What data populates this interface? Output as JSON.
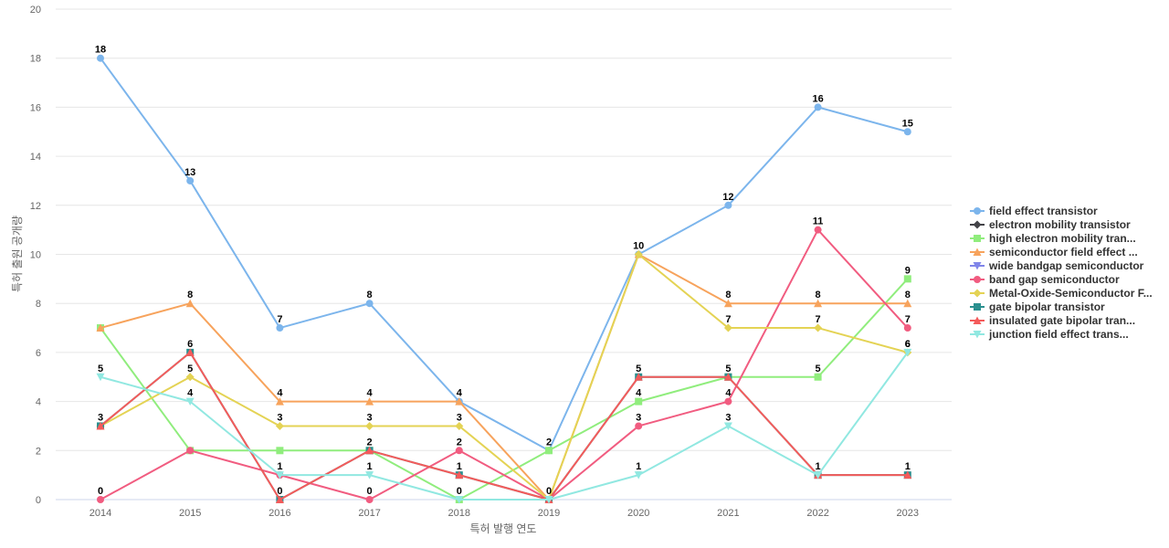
{
  "chart_data": {
    "type": "line",
    "title": "",
    "xlabel": "특허 발행 연도",
    "ylabel": "특허 출원 공개량",
    "ylim": [
      0,
      20
    ],
    "yticks": [
      0,
      2,
      4,
      6,
      8,
      10,
      12,
      14,
      16,
      18,
      20
    ],
    "categories": [
      "2014",
      "2015",
      "2016",
      "2017",
      "2018",
      "2019",
      "2020",
      "2021",
      "2022",
      "2023"
    ],
    "legend_position": "right",
    "series": [
      {
        "name": "field effect transistor",
        "color": "#7cb5ec",
        "marker": "circle",
        "values": [
          18,
          13,
          7,
          8,
          4,
          2,
          10,
          12,
          16,
          15
        ],
        "labels": [
          true,
          true,
          true,
          true,
          false,
          true,
          true,
          true,
          true,
          true
        ]
      },
      {
        "name": "electron mobility transistor",
        "color": "#434348",
        "marker": "diamond",
        "values": [
          null,
          null,
          null,
          null,
          null,
          null,
          null,
          null,
          null,
          null
        ],
        "labels": [
          false,
          false,
          false,
          false,
          false,
          false,
          false,
          false,
          false,
          false
        ]
      },
      {
        "name": "high electron mobility tran...",
        "color": "#90ed7d",
        "marker": "square",
        "values": [
          7,
          2,
          2,
          2,
          0,
          2,
          4,
          5,
          5,
          9
        ],
        "labels": [
          false,
          false,
          false,
          false,
          false,
          false,
          true,
          false,
          true,
          true
        ]
      },
      {
        "name": "semiconductor field effect ...",
        "color": "#f7a35c",
        "marker": "triangle",
        "values": [
          7,
          8,
          4,
          4,
          4,
          0,
          10,
          8,
          8,
          8
        ],
        "labels": [
          false,
          true,
          true,
          true,
          true,
          false,
          false,
          true,
          true,
          true
        ]
      },
      {
        "name": "wide bandgap semiconductor",
        "color": "#8085e9",
        "marker": "triangle-down",
        "values": [
          null,
          null,
          null,
          null,
          null,
          null,
          null,
          null,
          null,
          null
        ],
        "labels": [
          false,
          false,
          false,
          false,
          false,
          false,
          false,
          false,
          false,
          false
        ]
      },
      {
        "name": "band gap semiconductor",
        "color": "#f15c80",
        "marker": "circle",
        "values": [
          0,
          2,
          1,
          0,
          2,
          0,
          3,
          4,
          11,
          7
        ],
        "labels": [
          true,
          false,
          false,
          true,
          true,
          false,
          true,
          true,
          true,
          true
        ]
      },
      {
        "name": "Metal-Oxide-Semiconductor F...",
        "color": "#e4d354",
        "marker": "diamond",
        "values": [
          3,
          5,
          3,
          3,
          3,
          0,
          10,
          7,
          7,
          6
        ],
        "labels": [
          false,
          true,
          true,
          true,
          true,
          false,
          false,
          true,
          true,
          true
        ]
      },
      {
        "name": "gate bipolar transistor",
        "color": "#2b908f",
        "marker": "square",
        "values": [
          3,
          6,
          0,
          2,
          1,
          0,
          5,
          5,
          1,
          1
        ],
        "labels": [
          true,
          true,
          false,
          false,
          false,
          false,
          true,
          true,
          false,
          false
        ]
      },
      {
        "name": "insulated gate bipolar tran...",
        "color": "#f45b5b",
        "marker": "triangle",
        "values": [
          3,
          6,
          0,
          2,
          1,
          0,
          5,
          5,
          1,
          1
        ],
        "labels": [
          false,
          false,
          true,
          true,
          true,
          true,
          false,
          false,
          true,
          true
        ]
      },
      {
        "name": "junction field effect trans...",
        "color": "#91e8e1",
        "marker": "triangle-down",
        "values": [
          5,
          4,
          1,
          1,
          0,
          0,
          1,
          3,
          1,
          6
        ],
        "labels": [
          true,
          true,
          true,
          true,
          true,
          false,
          true,
          true,
          false,
          true
        ]
      }
    ]
  }
}
